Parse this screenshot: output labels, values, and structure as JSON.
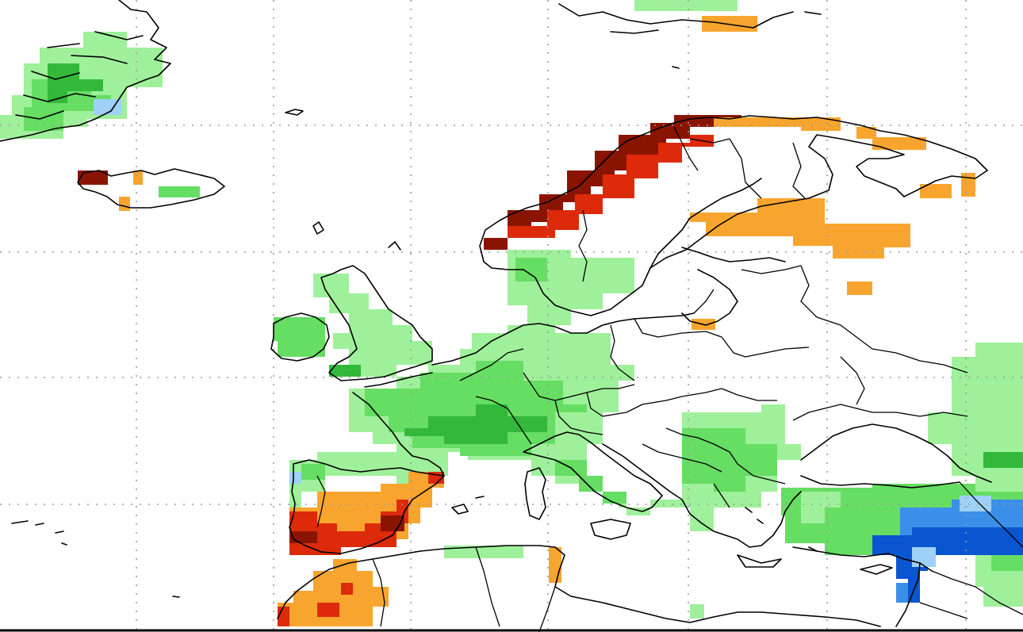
{
  "map": {
    "colors": {
      "very_wet": "#0a55d0",
      "wet_strong": "#3c8fe8",
      "wet_light": "#9fd0f7",
      "green_light": "#9ff09a",
      "green_mid": "#66dd63",
      "green_dark": "#33b83a",
      "orange_light": "#f8a52f",
      "orange_mid": "#f4701e",
      "red": "#dc2a0a",
      "dark_red": "#8a1402",
      "graticule": "#9a9a9a",
      "coastline": "#000000"
    }
  }
}
